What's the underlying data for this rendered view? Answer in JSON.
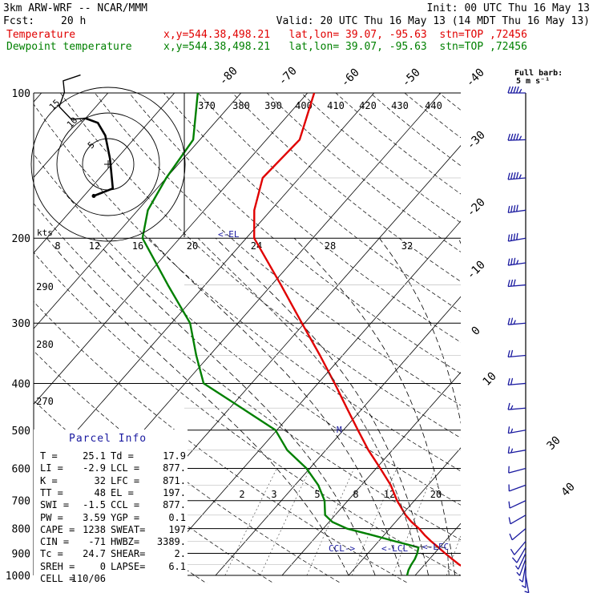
{
  "header": {
    "model": "3km ARW-WRF -- NCAR/MMM",
    "init": "Init: 00 UTC Thu 16 May 13",
    "fcst_label": "Fcst:",
    "fcst_value": "20 h",
    "valid": "Valid: 20 UTC Thu 16 May 13 (14 MDT Thu 16 May 13)",
    "temp_label": "Temperature",
    "dew_label": "Dewpoint temperature",
    "loc_line": "x,y=544.38,498.21   lat,lon= 39.07, -95.63  stn=TOP ,72456"
  },
  "colors": {
    "temperature": "#e00000",
    "dewpoint": "#008000",
    "wind": "#1a1aa0",
    "isobar": "#000000"
  },
  "barb_key": {
    "title": "Full barb:",
    "units": "5 m s⁻¹"
  },
  "hodograph": {
    "units": "kts",
    "rings": [
      "5",
      "10",
      "15"
    ]
  },
  "parcel_info": {
    "title": "Parcel Info",
    "rows": [
      [
        "T   =",
        "25.1",
        "Td  =",
        "17.9"
      ],
      [
        "LI  =",
        "-2.9",
        "LCL =",
        "877."
      ],
      [
        "K   =",
        "32",
        "LFC =",
        "871."
      ],
      [
        "TT  =",
        "48",
        "EL  =",
        "197."
      ],
      [
        "SWI =",
        "-1.5",
        "CCL =",
        "877."
      ],
      [
        "PW  =",
        "3.59",
        "YGP =",
        "0.1"
      ],
      [
        "CAPE =",
        "1238",
        "SWEAT=",
        "197"
      ],
      [
        "CIN  =",
        "-71",
        "HWBZ=",
        "3389."
      ],
      [
        "Tc  =",
        "24.7",
        "SHEAR=",
        "2."
      ],
      [
        "SREH =",
        "0",
        "LAPSE=",
        "6.1"
      ],
      [
        "CELL =",
        "110/06",
        "",
        ""
      ]
    ]
  },
  "annotations": {
    "el": "<-EL",
    "ccl": "CCL->",
    "lcl": "<-LCL",
    "lfc": "<-LFC",
    "m": "M"
  },
  "chart_data": {
    "type": "skew-t",
    "pressure_levels": [
      100,
      200,
      300,
      400,
      500,
      600,
      700,
      800,
      900,
      1000
    ],
    "pressure_labels": [
      "100",
      "200",
      "300",
      "400",
      "500",
      "600",
      "700",
      "800",
      "900",
      "1000"
    ],
    "temperature_ticks": [
      "-80",
      "-70",
      "-60",
      "-50",
      "-40",
      "-30",
      "-20",
      "-10",
      "0",
      "10",
      "30",
      "40"
    ],
    "theta_labels": [
      "370",
      "380",
      "390",
      "400",
      "410",
      "420",
      "430",
      "440",
      "290",
      "280",
      "270"
    ],
    "mixing_ratio_labels_upper": [
      "8",
      "12",
      "16",
      "20",
      "24",
      "28",
      "32"
    ],
    "mixing_ratio_labels_lower": [
      "2",
      "3",
      "5",
      "8",
      "12",
      "20"
    ],
    "series": [
      {
        "name": "Temperature",
        "points": [
          [
            1000,
            31
          ],
          [
            975,
            27.5
          ],
          [
            950,
            25.2
          ],
          [
            925,
            23.4
          ],
          [
            900,
            21.6
          ],
          [
            875,
            19.8
          ],
          [
            850,
            17.9
          ],
          [
            825,
            16.1
          ],
          [
            800,
            14.4
          ],
          [
            775,
            12.4
          ],
          [
            750,
            10.6
          ],
          [
            700,
            7.4
          ],
          [
            650,
            4.4
          ],
          [
            600,
            0.6
          ],
          [
            550,
            -3.6
          ],
          [
            500,
            -7.8
          ],
          [
            450,
            -12.4
          ],
          [
            400,
            -17.5
          ],
          [
            350,
            -23.4
          ],
          [
            300,
            -30.4
          ],
          [
            250,
            -38.6
          ],
          [
            200,
            -48.8
          ],
          [
            175,
            -52.5
          ],
          [
            150,
            -55.5
          ],
          [
            125,
            -55.0
          ],
          [
            100,
            -59.0
          ]
        ]
      },
      {
        "name": "Dewpoint temperature",
        "points": [
          [
            1000,
            18.8
          ],
          [
            975,
            18.3
          ],
          [
            950,
            18.0
          ],
          [
            925,
            17.8
          ],
          [
            900,
            17.4
          ],
          [
            875,
            16.8
          ],
          [
            850,
            12.5
          ],
          [
            825,
            8.2
          ],
          [
            800,
            3.6
          ],
          [
            775,
            0.5
          ],
          [
            750,
            -1.5
          ],
          [
            700,
            -3.5
          ],
          [
            650,
            -6.5
          ],
          [
            600,
            -10.5
          ],
          [
            550,
            -15.8
          ],
          [
            500,
            -20.2
          ],
          [
            450,
            -28.2
          ],
          [
            400,
            -37.2
          ],
          [
            350,
            -42.0
          ],
          [
            300,
            -47.2
          ],
          [
            250,
            -55.6
          ],
          [
            200,
            -65.6
          ],
          [
            175,
            -68.5
          ],
          [
            150,
            -70.0
          ],
          [
            125,
            -71.0
          ],
          [
            100,
            -76.5
          ]
        ]
      }
    ],
    "winds": [
      [
        1000,
        3,
        170
      ],
      [
        975,
        4,
        180
      ],
      [
        950,
        5,
        190
      ],
      [
        925,
        6,
        200
      ],
      [
        900,
        7,
        205
      ],
      [
        875,
        8,
        210
      ],
      [
        850,
        8,
        220
      ],
      [
        800,
        9,
        230
      ],
      [
        750,
        10,
        240
      ],
      [
        700,
        11,
        245
      ],
      [
        650,
        12,
        250
      ],
      [
        600,
        12,
        255
      ],
      [
        550,
        13,
        260
      ],
      [
        500,
        14,
        260
      ],
      [
        450,
        16,
        265
      ],
      [
        400,
        18,
        265
      ],
      [
        350,
        22,
        265
      ],
      [
        300,
        24,
        265
      ],
      [
        250,
        30,
        265
      ],
      [
        225,
        35,
        262
      ],
      [
        200,
        40,
        260
      ],
      [
        175,
        42,
        262
      ],
      [
        150,
        44,
        265
      ],
      [
        125,
        45,
        268
      ],
      [
        100,
        45,
        270
      ]
    ],
    "hodograph_points": [
      [
        -2.5,
        -5.5
      ],
      [
        0.8,
        -4.2
      ],
      [
        0.3,
        1.0
      ],
      [
        -0.5,
        5.0
      ],
      [
        -1.8,
        7.2
      ],
      [
        -4.0,
        8.0
      ],
      [
        -6.4,
        7.8
      ],
      [
        -8.5,
        10.0
      ],
      [
        -7.6,
        12.5
      ],
      [
        -7.8,
        14.5
      ],
      [
        -4.8,
        15.5
      ]
    ]
  }
}
